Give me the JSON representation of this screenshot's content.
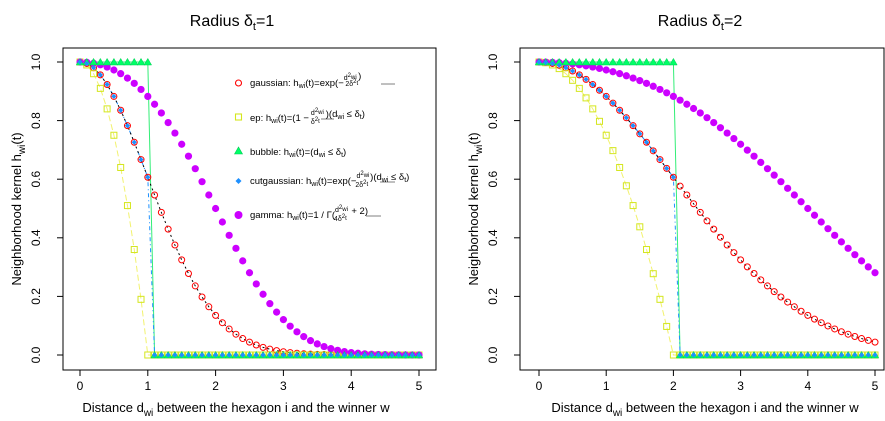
{
  "colors": {
    "gaussian": "#ff0000",
    "ep": "#d4e61e",
    "ep_line": "#f2f26e",
    "bubble": "#00ff66",
    "bubble_line": "#33ee77",
    "cutgaussian_fill": "#1e90ff",
    "cutgaussian_ring": "#ff0000",
    "cutgaussian_line": "#1e90ff",
    "gamma": "#cc00ff"
  },
  "chart_data": [
    {
      "type": "scatter",
      "title": "Radius δt=1",
      "title_main": "Radius δ",
      "title_sub": "t",
      "title_rest": "=1",
      "xlabel": "Distance d",
      "xlabel_sub": "wi",
      "xlabel_rest": " between the hexagon i and the winner w",
      "ylabel": "Neighborhood kernel h",
      "ylabel_sub": "wi",
      "ylabel_rest": "(t)",
      "xlim": [
        0,
        5
      ],
      "ylim": [
        0,
        1
      ],
      "xticks": [
        "0",
        "1",
        "2",
        "3",
        "4",
        "5"
      ],
      "yticks": [
        "0.0",
        "0.2",
        "0.4",
        "0.6",
        "0.8",
        "1.0"
      ],
      "radius": 1,
      "x": {
        "start": 0,
        "end": 5,
        "step": 0.1
      },
      "legend": {
        "position": "top-right",
        "entries": [
          {
            "series": "gaussian",
            "text": "gaussian: hwi(t)=exp(−dwi²/2δt²)"
          },
          {
            "series": "ep",
            "text": "ep: hwi(t)=(1−dwi²/δt²)(dwi ≤ δt)"
          },
          {
            "series": "bubble",
            "text": "bubble: hwi(t)=(dwi ≤ δt)"
          },
          {
            "series": "cutgaussian",
            "text": "cutgaussian: hwi(t)=exp(−dwi²/2δt²)(dwi ≤ δt)"
          },
          {
            "series": "gamma",
            "text": "gamma: hwi(t)=1/Γ(dwi²/4δt² + 2)"
          }
        ]
      },
      "series": [
        {
          "name": "gaussian",
          "marker": "open-circle"
        },
        {
          "name": "ep",
          "marker": "open-square"
        },
        {
          "name": "bubble",
          "marker": "filled-triangle"
        },
        {
          "name": "cutgaussian",
          "marker": "filled-diamond"
        },
        {
          "name": "gamma",
          "marker": "filled-circle"
        }
      ]
    },
    {
      "type": "scatter",
      "title": "Radius δt=2",
      "title_main": "Radius δ",
      "title_sub": "t",
      "title_rest": "=2",
      "xlabel": "Distance d",
      "xlabel_sub": "wi",
      "xlabel_rest": " between the hexagon i and the winner w",
      "ylabel": "Neighborhood kernel h",
      "ylabel_sub": "wi",
      "ylabel_rest": "(t)",
      "xlim": [
        0,
        5
      ],
      "ylim": [
        0,
        1
      ],
      "xticks": [
        "0",
        "1",
        "2",
        "3",
        "4",
        "5"
      ],
      "yticks": [
        "0.0",
        "0.2",
        "0.4",
        "0.6",
        "0.8",
        "1.0"
      ],
      "radius": 2,
      "x": {
        "start": 0,
        "end": 5,
        "step": 0.1
      },
      "series": [
        {
          "name": "gaussian",
          "marker": "open-circle"
        },
        {
          "name": "ep",
          "marker": "open-square"
        },
        {
          "name": "bubble",
          "marker": "filled-triangle"
        },
        {
          "name": "cutgaussian",
          "marker": "filled-diamond"
        },
        {
          "name": "gamma",
          "marker": "filled-circle"
        }
      ]
    }
  ]
}
